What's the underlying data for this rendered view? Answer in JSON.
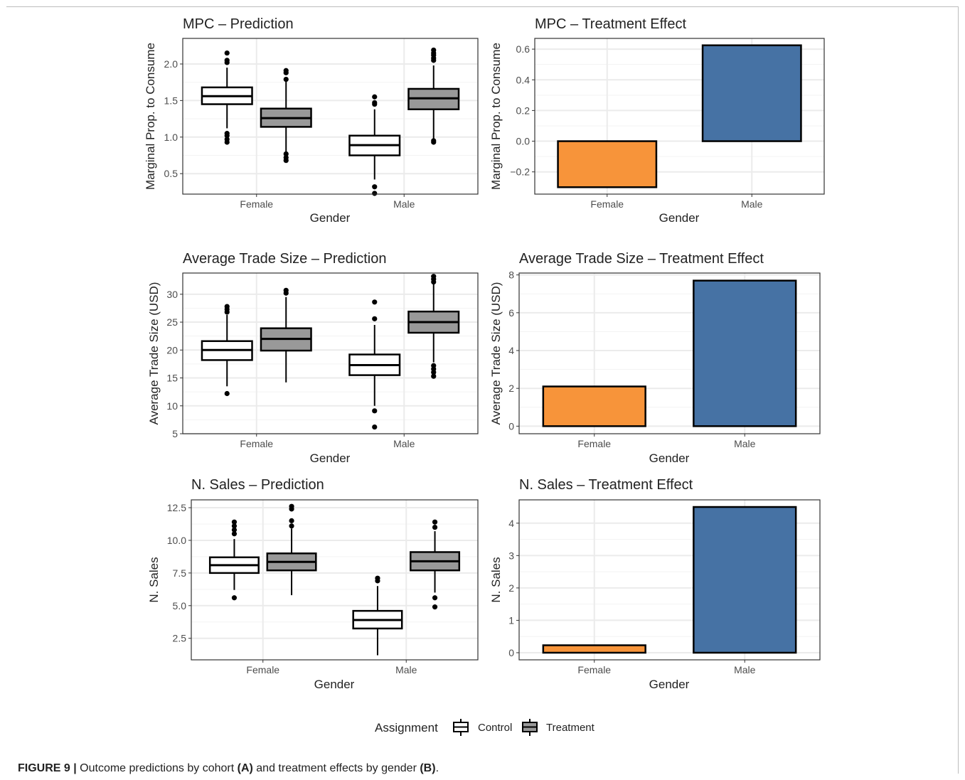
{
  "caption": {
    "label": "FIGURE 9 |",
    "text_1": " Outcome predictions by cohort ",
    "a": "(A)",
    "text_2": " and treatment effects by gender ",
    "b": "(B)",
    "text_3": "."
  },
  "legend": {
    "title": "Assignment",
    "items": [
      {
        "label": "Control",
        "fill": "#ffffff"
      },
      {
        "label": "Treatment",
        "fill": "#999999"
      }
    ]
  },
  "colors": {
    "female_bar": "#F7943A",
    "male_bar": "#4672A4",
    "control_fill": "#ffffff",
    "treatment_fill": "#999999",
    "grid": "#ebebeb"
  },
  "chart_data": [
    {
      "id": "mpc_pred",
      "type": "box",
      "title": "MPC – Prediction",
      "xlabel": "Gender",
      "ylabel": "Marginal Prop. to Consume",
      "categories": [
        "Female",
        "Male"
      ],
      "ylim": [
        0.22,
        2.35
      ],
      "yticks": [
        0.5,
        1.0,
        1.5,
        2.0
      ],
      "ytick_labels": [
        "0.5",
        "1.0",
        "1.5",
        "2.0"
      ],
      "grid": true,
      "series": [
        {
          "name": "Control",
          "boxes": [
            {
              "category": "Female",
              "min": 1.12,
              "q1": 1.45,
              "median": 1.56,
              "q3": 1.68,
              "max": 1.95,
              "outliers": [
                0.93,
                0.97,
                1.02,
                1.05,
                2.02,
                2.05,
                2.15
              ]
            },
            {
              "category": "Male",
              "min": 0.42,
              "q1": 0.75,
              "median": 0.89,
              "q3": 1.02,
              "max": 1.38,
              "outliers": [
                0.23,
                0.32,
                1.45,
                1.47,
                1.55
              ]
            }
          ]
        },
        {
          "name": "Treatment",
          "boxes": [
            {
              "category": "Female",
              "min": 0.8,
              "q1": 1.14,
              "median": 1.26,
              "q3": 1.39,
              "max": 1.76,
              "outliers": [
                0.68,
                0.72,
                0.77,
                1.79,
                1.88,
                1.91
              ]
            },
            {
              "category": "Male",
              "min": 0.98,
              "q1": 1.38,
              "median": 1.53,
              "q3": 1.66,
              "max": 1.98,
              "outliers": [
                0.93,
                0.95,
                2.05,
                2.08,
                2.12,
                2.15,
                2.19
              ]
            }
          ]
        }
      ]
    },
    {
      "id": "mpc_te",
      "type": "bar",
      "title": "MPC – Treatment Effect",
      "xlabel": "Gender",
      "ylabel": "Marginal Prop. to Consume",
      "categories": [
        "Female",
        "Male"
      ],
      "values": [
        -0.3,
        0.625
      ],
      "ylim": [
        -0.345,
        0.67
      ],
      "yticks": [
        -0.2,
        0.0,
        0.2,
        0.4,
        0.6
      ],
      "ytick_labels": [
        "−0.2",
        "0.0",
        "0.2",
        "0.4",
        "0.6"
      ],
      "grid": true
    },
    {
      "id": "ats_pred",
      "type": "box",
      "title": "Average Trade Size – Prediction",
      "xlabel": "Gender",
      "ylabel": "Average Trade Size (USD)",
      "categories": [
        "Female",
        "Male"
      ],
      "ylim": [
        5,
        33.8
      ],
      "yticks": [
        5,
        10,
        15,
        20,
        25,
        30
      ],
      "ytick_labels": [
        "5",
        "10",
        "15",
        "20",
        "25",
        "30"
      ],
      "grid": true,
      "series": [
        {
          "name": "Control",
          "boxes": [
            {
              "category": "Female",
              "min": 13.5,
              "q1": 18.2,
              "median": 20.0,
              "q3": 21.6,
              "max": 26.3,
              "outliers": [
                12.2,
                26.8,
                27.3,
                27.8
              ]
            },
            {
              "category": "Male",
              "min": 10.0,
              "q1": 15.5,
              "median": 17.3,
              "q3": 19.2,
              "max": 24.5,
              "outliers": [
                6.2,
                9.1,
                25.6,
                28.6
              ]
            }
          ]
        },
        {
          "name": "Treatment",
          "boxes": [
            {
              "category": "Female",
              "min": 14.2,
              "q1": 19.9,
              "median": 22.0,
              "q3": 23.9,
              "max": 29.5,
              "outliers": [
                30.2,
                30.7
              ]
            },
            {
              "category": "Male",
              "min": 17.8,
              "q1": 23.1,
              "median": 25.0,
              "q3": 26.9,
              "max": 31.8,
              "outliers": [
                15.3,
                16.0,
                16.6,
                17.2,
                32.2,
                32.7,
                33.2
              ]
            }
          ]
        }
      ]
    },
    {
      "id": "ats_te",
      "type": "bar",
      "title": "Average Trade Size – Treatment Effect",
      "xlabel": "Gender",
      "ylabel": "Average Trade Size (USD)",
      "categories": [
        "Female",
        "Male"
      ],
      "values": [
        2.1,
        7.7
      ],
      "ylim": [
        -0.4,
        8.1
      ],
      "yticks": [
        0,
        2,
        4,
        6,
        8
      ],
      "ytick_labels": [
        "0",
        "2",
        "4",
        "6",
        "8"
      ],
      "grid": true
    },
    {
      "id": "sales_pred",
      "type": "box",
      "title": "N. Sales – Prediction",
      "xlabel": "Gender",
      "ylabel": "N. Sales",
      "categories": [
        "Female",
        "Male"
      ],
      "ylim": [
        0.85,
        13.1
      ],
      "yticks": [
        2.5,
        5.0,
        7.5,
        10.0,
        12.5
      ],
      "ytick_labels": [
        "2.5",
        "5.0",
        "7.5",
        "10.0",
        "12.5"
      ],
      "grid": true,
      "series": [
        {
          "name": "Control",
          "boxes": [
            {
              "category": "Female",
              "min": 6.2,
              "q1": 7.5,
              "median": 8.1,
              "q3": 8.7,
              "max": 10.1,
              "outliers": [
                5.6,
                10.5,
                10.8,
                11.1,
                11.4
              ]
            },
            {
              "category": "Male",
              "min": 1.2,
              "q1": 3.25,
              "median": 3.9,
              "q3": 4.6,
              "max": 6.5,
              "outliers": [
                6.9,
                7.1
              ]
            }
          ]
        },
        {
          "name": "Treatment",
          "boxes": [
            {
              "category": "Female",
              "min": 5.8,
              "q1": 7.7,
              "median": 8.35,
              "q3": 9.0,
              "max": 10.9,
              "outliers": [
                11.1,
                11.5,
                12.4,
                12.6
              ]
            },
            {
              "category": "Male",
              "min": 6.0,
              "q1": 7.7,
              "median": 8.4,
              "q3": 9.1,
              "max": 10.7,
              "outliers": [
                4.9,
                5.6,
                11.0,
                11.4
              ]
            }
          ]
        }
      ]
    },
    {
      "id": "sales_te",
      "type": "bar",
      "title": "N. Sales – Treatment Effect",
      "xlabel": "Gender",
      "ylabel": "N. Sales",
      "categories": [
        "Female",
        "Male"
      ],
      "values": [
        0.23,
        4.5
      ],
      "ylim": [
        -0.22,
        4.72
      ],
      "yticks": [
        0,
        1,
        2,
        3,
        4
      ],
      "ytick_labels": [
        "0",
        "1",
        "2",
        "3",
        "4"
      ],
      "grid": true
    }
  ]
}
